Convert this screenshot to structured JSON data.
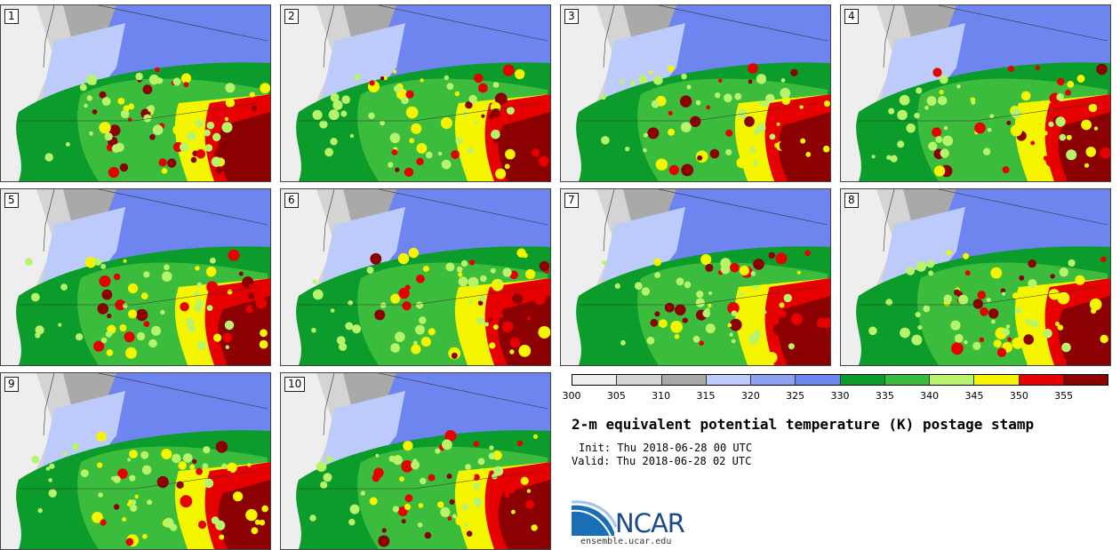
{
  "panels": [
    {
      "label": "1"
    },
    {
      "label": "2"
    },
    {
      "label": "3"
    },
    {
      "label": "4"
    },
    {
      "label": "5"
    },
    {
      "label": "6"
    },
    {
      "label": "7"
    },
    {
      "label": "8"
    },
    {
      "label": "9"
    },
    {
      "label": "10"
    }
  ],
  "colorbar": {
    "colors": [
      "#eeeeee",
      "#d4d4d4",
      "#a9a9a9",
      "#bccbf9",
      "#8ea2f4",
      "#6e84ef",
      "#0b9c2b",
      "#3cbc3c",
      "#b8f46a",
      "#f5f500",
      "#e60000",
      "#8b0000"
    ],
    "tick_labels": [
      "300",
      "305",
      "310",
      "315",
      "320",
      "325",
      "330",
      "335",
      "340",
      "345",
      "350",
      "355"
    ]
  },
  "title": "2-m equivalent potential temperature (K) postage stamp",
  "init": "Init: Thu 2018-06-28 00 UTC",
  "valid": "Valid: Thu 2018-06-28 02 UTC",
  "logo": {
    "text": "NCAR",
    "url": "ensemble.ucar.edu"
  }
}
